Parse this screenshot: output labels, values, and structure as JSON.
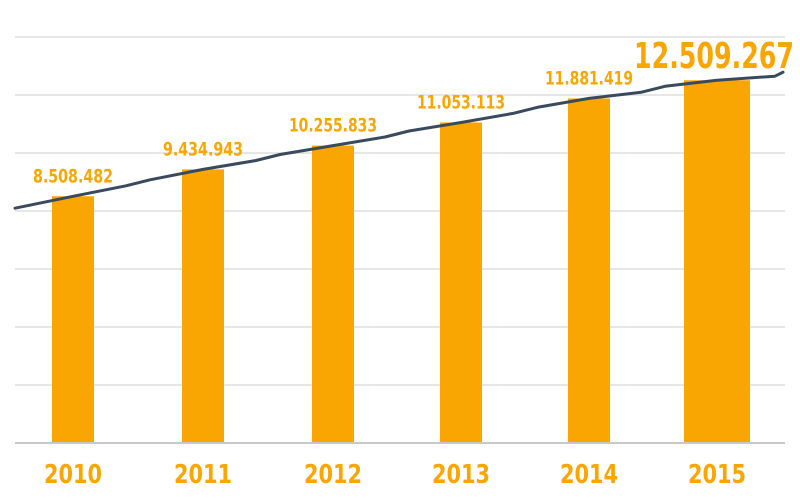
{
  "chart_data": {
    "type": "bar",
    "categories": [
      "2010",
      "2011",
      "2012",
      "2013",
      "2014",
      "2015"
    ],
    "values": [
      8508482,
      9434943,
      10255833,
      11053113,
      11881419,
      12509267
    ],
    "value_labels": [
      "8.508.482",
      "9.434.943",
      "10.255.833",
      "11.053.113",
      "11.881.419",
      "12.509.267"
    ],
    "ylim": [
      0,
      14000000
    ],
    "grid": true,
    "trend_line": true,
    "colors": {
      "bar": "#f9a602",
      "trend": "#3a4a5e",
      "grid": "#e6e6e6",
      "text": "#f9a602"
    }
  }
}
